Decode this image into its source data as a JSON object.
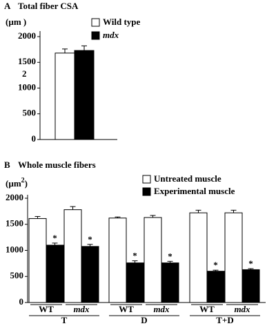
{
  "chart_data": [
    {
      "type": "bar",
      "panel": "A",
      "title": "Total fiber CSA",
      "ylabel": "(µm )",
      "ylabel_superscript": "2",
      "categories": [
        null
      ],
      "series": [
        {
          "name": "Wild type",
          "color": "#ffffff",
          "values": [
            1680
          ],
          "errors": [
            80
          ]
        },
        {
          "name": "mdx",
          "color": "#000000",
          "values": [
            1730
          ],
          "errors": [
            90
          ]
        }
      ],
      "ylim": [
        0,
        2000
      ],
      "yticks": [
        0,
        500,
        1000,
        1500,
        2000
      ]
    },
    {
      "type": "bar",
      "panel": "B",
      "title": "Whole muscle fibers",
      "ylabel": "(µm",
      "ylabel_superscript": "2",
      "ylabel_end": ")",
      "groups": [
        {
          "name": "T",
          "categories": [
            "WT",
            "mdx"
          ]
        },
        {
          "name": "D",
          "categories": [
            "WT",
            "mdx"
          ]
        },
        {
          "name": "T+D",
          "categories": [
            "WT",
            "mdx"
          ]
        }
      ],
      "series": [
        {
          "name": "Untreated muscle",
          "color": "#ffffff",
          "values": [
            1610,
            1780,
            1620,
            1630,
            1720,
            1720
          ],
          "errors": [
            40,
            60,
            20,
            40,
            50,
            50
          ]
        },
        {
          "name": "Experimental muscle",
          "color": "#000000",
          "values": [
            1100,
            1075,
            760,
            760,
            600,
            630
          ],
          "errors": [
            40,
            40,
            40,
            30,
            20,
            20
          ],
          "annotations": [
            "*",
            "*",
            "*",
            "*",
            "*",
            "*"
          ]
        }
      ],
      "ylim": [
        0,
        2000
      ],
      "yticks": [
        0,
        500,
        1000,
        1500,
        2000
      ]
    }
  ]
}
